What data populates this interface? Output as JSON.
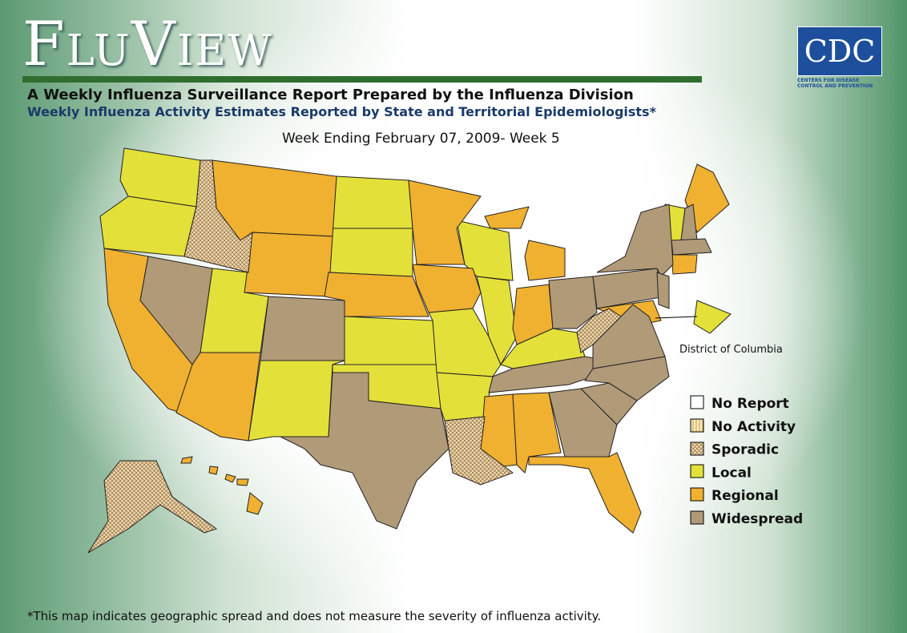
{
  "header": {
    "title": "FluView",
    "subtitle": "A Weekly Influenza Surveillance Report Prepared by the Influenza Division",
    "subtitle2": "Weekly Influenza Activity Estimates Reported by State and Territorial Epidemiologists*",
    "week": "Week Ending February 07, 2009- Week 5"
  },
  "logo": {
    "name": "CDC",
    "tagline": "Centers for Disease Control and Prevention"
  },
  "map": {
    "dc_label": "District of Columbia"
  },
  "legend": {
    "items": [
      "No Report",
      "No Activity",
      "Sporadic",
      "Local",
      "Regional",
      "Widespread"
    ]
  },
  "footnote": "*This map indicates geographic spread and does not measure the severity of influenza activity."
}
